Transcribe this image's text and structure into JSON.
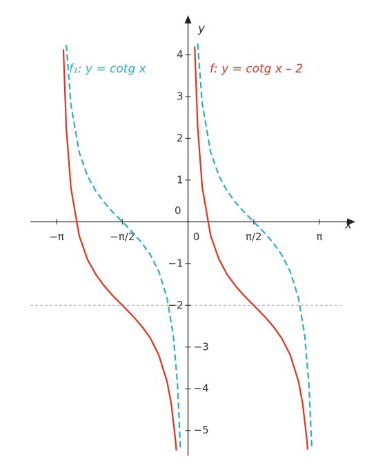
{
  "chart_data": {
    "type": "line",
    "x_label": "x",
    "y_label": "y",
    "xlim": [
      -3.77,
      4.0
    ],
    "ylim": [
      -5.6,
      4.95
    ],
    "xticks": [
      {
        "value": -3.14159,
        "label": "−π"
      },
      {
        "value": -1.5708,
        "label": "−π/2"
      },
      0,
      {
        "value": 1.5708,
        "label": "π/2"
      },
      {
        "value": 3.14159,
        "label": "π"
      }
    ],
    "yticks": [
      4,
      3,
      2,
      1,
      0,
      {
        "value": -1,
        "label": "−1"
      },
      {
        "value": -2,
        "label": "−2"
      },
      {
        "value": -3,
        "label": "−3"
      },
      {
        "value": -4,
        "label": "−4"
      },
      {
        "value": -5,
        "label": "−5"
      }
    ],
    "reference_line": {
      "y": -2,
      "color": "#aaaaaa"
    },
    "series": [
      {
        "name": "f₁: y = cotg x",
        "color": "#29afc7",
        "dashed": true,
        "x": [
          -2.91,
          -2.8,
          -2.6,
          -2.4,
          -2.2,
          -2.0,
          -1.8,
          -1.57,
          -1.3,
          -1.1,
          -0.9,
          -0.7,
          -0.5,
          -0.35,
          -0.25,
          -0.18,
          0,
          0.23,
          0.34,
          0.54,
          0.74,
          0.94,
          1.14,
          1.34,
          1.57,
          1.84,
          2.04,
          2.24,
          2.44,
          2.64,
          2.79,
          2.89,
          2.96
        ],
        "values": [
          4.24,
          2.81,
          1.66,
          1.09,
          0.729,
          0.458,
          0.233,
          0,
          -0.278,
          -0.509,
          -0.794,
          -1.187,
          -1.83,
          -2.74,
          -3.916,
          -5.49,
          null,
          4.27,
          2.83,
          1.67,
          1.1,
          0.73,
          0.46,
          0.235,
          0,
          -0.276,
          -0.508,
          -0.792,
          -1.184,
          -1.824,
          -2.73,
          -3.89,
          -5.45
        ]
      },
      {
        "name": "f: y = cotg x – 2",
        "color": "#e2321f",
        "dashed": false,
        "x": [
          -2.98,
          -2.91,
          -2.8,
          -2.6,
          -2.4,
          -2.2,
          -2.0,
          -1.8,
          -1.57,
          -1.3,
          -1.1,
          -0.9,
          -0.7,
          -0.5,
          -0.4,
          -0.3,
          -0.28,
          0,
          0.16,
          0.23,
          0.34,
          0.54,
          0.74,
          0.94,
          1.14,
          1.34,
          1.57,
          1.84,
          2.04,
          2.24,
          2.44,
          2.64,
          2.74,
          2.84,
          2.86
        ],
        "values": [
          4.13,
          2.24,
          0.81,
          -0.34,
          -0.91,
          -1.27,
          -1.54,
          -1.77,
          -2,
          -2.28,
          -2.51,
          -2.79,
          -3.19,
          -3.83,
          -4.37,
          -5.23,
          -5.48,
          null,
          4.2,
          2.27,
          0.83,
          -0.33,
          -0.9,
          -1.27,
          -1.54,
          -1.77,
          -2,
          -2.28,
          -2.51,
          -2.79,
          -3.18,
          -3.82,
          -4.35,
          -5.21,
          -5.46
        ]
      }
    ]
  }
}
